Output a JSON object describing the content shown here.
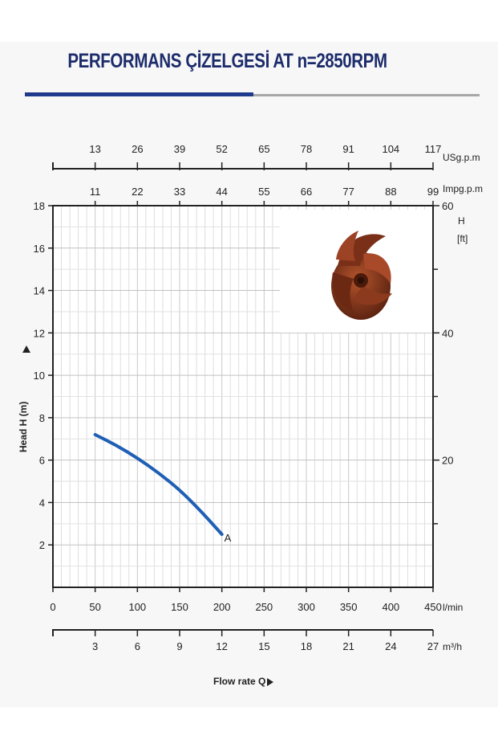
{
  "title": "PERFORMANS ÇİZELGESİ  AT n=2850RPM",
  "colors": {
    "title": "#1c2c6b",
    "curve": "#1f5fb5",
    "rule_blue": "#1f3a8c",
    "rule_gray": "#a7a7a7",
    "impeller": "#8b3a1e"
  },
  "icons": {
    "impeller": "impeller-photo"
  },
  "chart_data": {
    "type": "line",
    "xlabel": "Flow rate Q",
    "ylabel": "Head H (m)",
    "x_unit": "l/min",
    "xlim": [
      0,
      450
    ],
    "ylim": [
      0,
      18
    ],
    "grid": true,
    "x_ticks": [
      0,
      50,
      100,
      150,
      200,
      250,
      300,
      350,
      400,
      450
    ],
    "y_ticks": [
      2,
      4,
      6,
      8,
      10,
      12,
      14,
      16,
      18
    ],
    "secondary_axes": {
      "usgpm": {
        "unit": "USg.p.m",
        "ticks": [
          13,
          26,
          39,
          52,
          65,
          78,
          91,
          104,
          117
        ]
      },
      "impgpm": {
        "unit": "Impg.p.m",
        "ticks": [
          11,
          22,
          33,
          44,
          55,
          66,
          77,
          88,
          99
        ]
      },
      "m3h": {
        "unit": "m³/h",
        "ticks": [
          3,
          6,
          9,
          12,
          15,
          18,
          21,
          24,
          27
        ]
      },
      "head_ft": {
        "label": "H",
        "unit": "[ft]",
        "ticks": [
          20,
          40,
          60
        ]
      }
    },
    "series": [
      {
        "name": "A",
        "x": [
          50,
          75,
          100,
          125,
          150,
          175,
          200
        ],
        "y": [
          7.2,
          6.7,
          6.1,
          5.4,
          4.6,
          3.6,
          2.5
        ]
      }
    ]
  }
}
